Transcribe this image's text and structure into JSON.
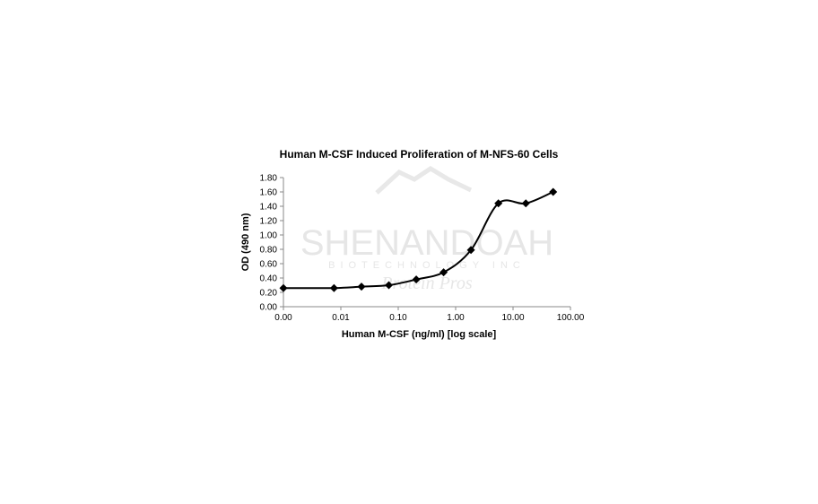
{
  "chart_data": {
    "type": "line",
    "title": "Human M-CSF Induced Proliferation of M-NFS-60 Cells",
    "xlabel": "Human M-CSF (ng/ml) [log scale]",
    "ylabel": "OD (490 nm)",
    "x_scale": "log",
    "xlim": [
      0.001,
      100
    ],
    "ylim": [
      0,
      1.8
    ],
    "x_tick_values": [
      0.001,
      0.01,
      0.1,
      1,
      10,
      100
    ],
    "x_tick_labels": [
      "0.00",
      "0.01",
      "0.10",
      "1.00",
      "10.00",
      "100.00"
    ],
    "y_ticks": [
      0,
      0.2,
      0.4,
      0.6,
      0.8,
      1.0,
      1.2,
      1.4,
      1.6,
      1.8
    ],
    "y_tick_labels": [
      "0.00",
      "0.20",
      "0.40",
      "0.60",
      "0.80",
      "1.00",
      "1.20",
      "1.40",
      "1.60",
      "1.80"
    ],
    "grid": false,
    "marker": "diamond",
    "line": "smoothed",
    "color": "#000000",
    "x": [
      0.001,
      0.0076,
      0.0229,
      0.0686,
      0.206,
      0.617,
      1.85,
      5.56,
      16.7,
      50
    ],
    "y": [
      0.26,
      0.26,
      0.28,
      0.3,
      0.38,
      0.48,
      0.79,
      1.44,
      1.44,
      1.6
    ]
  },
  "watermark": {
    "lines": [
      "SHENANDOAH",
      "BIOTECHNOLOGY INC",
      "Protein Pros"
    ]
  }
}
